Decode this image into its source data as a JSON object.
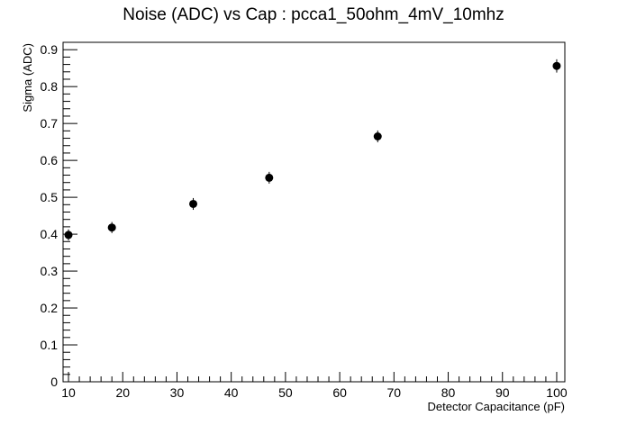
{
  "chart_data": {
    "type": "scatter",
    "title": "Noise (ADC) vs Cap : pcca1_50ohm_4mV_10mhz",
    "xlabel": "Detector Capacitance (pF)",
    "ylabel": "Sigma (ADC)",
    "xlim": [
      9,
      101.5
    ],
    "ylim": [
      0,
      0.92
    ],
    "xticks": [
      "10",
      "20",
      "30",
      "40",
      "50",
      "60",
      "70",
      "80",
      "90",
      "100"
    ],
    "yticks": [
      "0",
      "0.1",
      "0.2",
      "0.3",
      "0.4",
      "0.5",
      "0.6",
      "0.7",
      "0.8",
      "0.9"
    ],
    "grid": false,
    "legend": "none",
    "marker_color": "#000000",
    "points": [
      {
        "x": 10,
        "y": 0.398,
        "err": 0.015
      },
      {
        "x": 18,
        "y": 0.418,
        "err": 0.015
      },
      {
        "x": 33,
        "y": 0.482,
        "err": 0.016
      },
      {
        "x": 47,
        "y": 0.553,
        "err": 0.016
      },
      {
        "x": 67,
        "y": 0.665,
        "err": 0.016
      },
      {
        "x": 100,
        "y": 0.856,
        "err": 0.018
      }
    ]
  }
}
